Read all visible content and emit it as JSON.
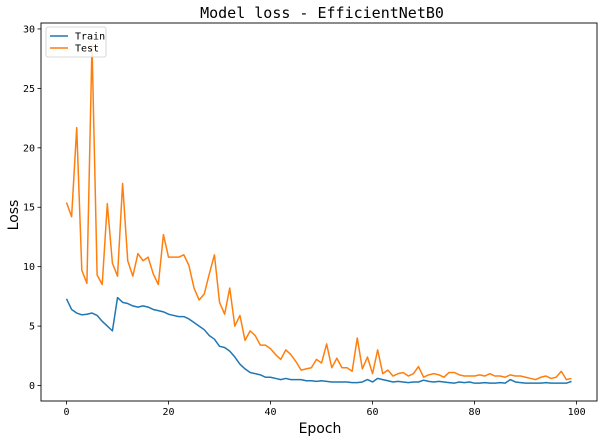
{
  "chart_data": {
    "type": "line",
    "title": "Model loss - EfficientNetB0",
    "xlabel": "Epoch",
    "ylabel": "Loss",
    "xlim": [
      -5,
      104
    ],
    "ylim": [
      -1.3,
      30.5
    ],
    "xticks": [
      0,
      20,
      40,
      60,
      80,
      100
    ],
    "yticks": [
      0,
      5,
      10,
      15,
      20,
      25,
      30
    ],
    "grid": false,
    "legend_position": "top-left",
    "series": [
      {
        "name": "Train",
        "color": "#1f77b4",
        "x": [
          0,
          1,
          2,
          3,
          4,
          5,
          6,
          7,
          8,
          9,
          10,
          11,
          12,
          13,
          14,
          15,
          16,
          17,
          18,
          19,
          20,
          21,
          22,
          23,
          24,
          25,
          26,
          27,
          28,
          29,
          30,
          31,
          32,
          33,
          34,
          35,
          36,
          37,
          38,
          39,
          40,
          41,
          42,
          43,
          44,
          45,
          46,
          47,
          48,
          49,
          50,
          51,
          52,
          53,
          54,
          55,
          56,
          57,
          58,
          59,
          60,
          61,
          62,
          63,
          64,
          65,
          66,
          67,
          68,
          69,
          70,
          71,
          72,
          73,
          74,
          75,
          76,
          77,
          78,
          79,
          80,
          81,
          82,
          83,
          84,
          85,
          86,
          87,
          88,
          89,
          90,
          91,
          92,
          93,
          94,
          95,
          96,
          97,
          98,
          99
        ],
        "values": [
          7.3,
          6.4,
          6.1,
          5.95,
          6.0,
          6.1,
          5.9,
          5.4,
          5.0,
          4.6,
          7.4,
          7.0,
          6.9,
          6.7,
          6.6,
          6.7,
          6.6,
          6.4,
          6.3,
          6.2,
          6.0,
          5.9,
          5.8,
          5.8,
          5.6,
          5.3,
          5.0,
          4.7,
          4.2,
          3.9,
          3.3,
          3.2,
          2.9,
          2.4,
          1.8,
          1.4,
          1.1,
          1.0,
          0.9,
          0.7,
          0.7,
          0.6,
          0.5,
          0.6,
          0.5,
          0.5,
          0.5,
          0.4,
          0.4,
          0.35,
          0.4,
          0.35,
          0.3,
          0.3,
          0.3,
          0.3,
          0.25,
          0.25,
          0.3,
          0.5,
          0.3,
          0.6,
          0.5,
          0.4,
          0.3,
          0.35,
          0.3,
          0.25,
          0.3,
          0.3,
          0.45,
          0.35,
          0.3,
          0.35,
          0.3,
          0.25,
          0.2,
          0.3,
          0.25,
          0.3,
          0.2,
          0.2,
          0.25,
          0.2,
          0.2,
          0.25,
          0.2,
          0.5,
          0.3,
          0.25,
          0.2,
          0.2,
          0.2,
          0.2,
          0.25,
          0.2,
          0.2,
          0.2,
          0.2,
          0.35
        ]
      },
      {
        "name": "Test",
        "color": "#ff7f0e",
        "x": [
          0,
          1,
          2,
          3,
          4,
          5,
          6,
          7,
          8,
          9,
          10,
          11,
          12,
          13,
          14,
          15,
          16,
          17,
          18,
          19,
          20,
          21,
          22,
          23,
          24,
          25,
          26,
          27,
          28,
          29,
          30,
          31,
          32,
          33,
          34,
          35,
          36,
          37,
          38,
          39,
          40,
          41,
          42,
          43,
          44,
          45,
          46,
          47,
          48,
          49,
          50,
          51,
          52,
          53,
          54,
          55,
          56,
          57,
          58,
          59,
          60,
          61,
          62,
          63,
          64,
          65,
          66,
          67,
          68,
          69,
          70,
          71,
          72,
          73,
          74,
          75,
          76,
          77,
          78,
          79,
          80,
          81,
          82,
          83,
          84,
          85,
          86,
          87,
          88,
          89,
          90,
          91,
          92,
          93,
          94,
          95,
          96,
          97,
          98,
          99
        ],
        "values": [
          15.4,
          14.2,
          21.7,
          9.7,
          8.6,
          28.7,
          9.3,
          8.5,
          15.3,
          10.3,
          9.2,
          17.0,
          10.5,
          9.2,
          11.1,
          10.5,
          10.8,
          9.4,
          8.5,
          12.7,
          10.8,
          10.8,
          10.8,
          11.0,
          10.1,
          8.2,
          7.2,
          7.7,
          9.4,
          11.0,
          7.0,
          6.0,
          8.2,
          5.0,
          5.9,
          3.8,
          4.6,
          4.2,
          3.4,
          3.4,
          3.1,
          2.6,
          2.2,
          3.0,
          2.6,
          2.0,
          1.3,
          1.4,
          1.5,
          2.2,
          1.9,
          3.5,
          1.5,
          2.3,
          1.5,
          1.5,
          1.2,
          4.0,
          1.4,
          2.4,
          1.0,
          3.0,
          1.0,
          1.3,
          0.8,
          1.0,
          1.1,
          0.8,
          1.0,
          1.6,
          0.7,
          0.9,
          1.0,
          0.9,
          0.7,
          1.1,
          1.1,
          0.9,
          0.8,
          0.8,
          0.8,
          0.9,
          0.8,
          1.0,
          0.8,
          0.8,
          0.7,
          0.9,
          0.8,
          0.8,
          0.7,
          0.6,
          0.5,
          0.7,
          0.8,
          0.6,
          0.7,
          1.2,
          0.5,
          0.6
        ]
      }
    ]
  }
}
